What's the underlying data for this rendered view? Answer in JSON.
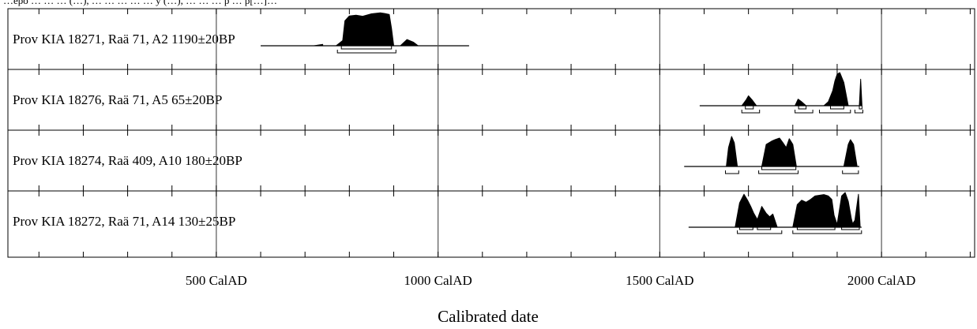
{
  "chart_data": {
    "type": "area",
    "header_text": "…epo … … … (…), … … … … … y (…), … … … p … p[…]…",
    "xlabel": "Calibrated date",
    "xlim": [
      30,
      2210
    ],
    "ticks": [
      500,
      1000,
      1500,
      2000
    ],
    "tick_labels": [
      "500 CalAD",
      "1000 CalAD",
      "1500 CalAD",
      "2000 CalAD"
    ],
    "minor_tick_step": 100,
    "grid_lines": [
      500,
      1000,
      1500,
      2000
    ],
    "rows": [
      {
        "label": "Prov KIA 18271, Raä 71, A2  1190±20BP",
        "baseline": [
          600,
          1070
        ],
        "peaks": [
          {
            "x": [
              720,
              740
            ],
            "y": [
              0,
              0.04
            ]
          },
          {
            "x": [
              770,
              785,
              790,
              800,
              815,
              830,
              850,
              870,
              880,
              890,
              895,
              900
            ],
            "y": [
              0,
              0.15,
              0.72,
              0.86,
              0.88,
              0.85,
              0.92,
              0.95,
              0.93,
              0.9,
              0.5,
              0
            ]
          },
          {
            "x": [
              915,
              930,
              945,
              955
            ],
            "y": [
              0,
              0.18,
              0.1,
              0
            ]
          }
        ],
        "ranges": [
          {
            "level": 1,
            "spans": [
              [
                782,
                895
              ]
            ]
          },
          {
            "level": 2,
            "spans": [
              [
                773,
                905
              ]
            ]
          }
        ]
      },
      {
        "label": "Prov KIA 18276, Raä 71, A5  65±20BP",
        "baseline": [
          1590,
          1950
        ],
        "peaks": [
          {
            "x": [
              1685,
              1695,
              1700,
              1708,
              1718
            ],
            "y": [
              0,
              0.18,
              0.3,
              0.18,
              0
            ]
          },
          {
            "x": [
              1805,
              1812,
              1820,
              1830
            ],
            "y": [
              0,
              0.2,
              0.12,
              0
            ]
          },
          {
            "x": [
              1870,
              1880,
              1890,
              1895,
              1900,
              1906,
              1915,
              1925
            ],
            "y": [
              0,
              0.12,
              0.45,
              0.75,
              0.95,
              1.0,
              0.7,
              0
            ]
          },
          {
            "x": [
              1950,
              1953,
              1956
            ],
            "y": [
              0,
              0.8,
              0
            ]
          }
        ],
        "ranges": [
          {
            "level": 1,
            "spans": [
              [
                1693,
                1711
              ],
              [
                1813,
                1830
              ],
              [
                1885,
                1915
              ],
              [
                1950,
                1956
              ]
            ]
          },
          {
            "level": 2,
            "spans": [
              [
                1685,
                1725
              ],
              [
                1805,
                1845
              ],
              [
                1860,
                1930
              ],
              [
                1940,
                1958
              ]
            ]
          }
        ]
      },
      {
        "label": "Prov KIA 18274, Raä 409, A10  180±20BP",
        "baseline": [
          1555,
          1950
        ],
        "peaks": [
          {
            "x": [
              1650,
              1655,
              1662,
              1668,
              1675
            ],
            "y": [
              0,
              0.6,
              0.95,
              0.75,
              0
            ]
          },
          {
            "x": [
              1730,
              1740,
              1752,
              1760,
              1770,
              1778,
              1785,
              1792,
              1800,
              1808
            ],
            "y": [
              0,
              0.7,
              0.8,
              0.85,
              0.9,
              0.75,
              0.6,
              0.88,
              0.7,
              0
            ]
          },
          {
            "x": [
              1915,
              1925,
              1930,
              1937,
              1945
            ],
            "y": [
              0,
              0.7,
              0.85,
              0.7,
              0
            ]
          }
        ],
        "ranges": [
          {
            "level": 1,
            "spans": [
              [
                1730,
                1807
              ]
            ]
          },
          {
            "level": 2,
            "spans": [
              [
                1648,
                1678
              ],
              [
                1723,
                1812
              ],
              [
                1912,
                1948
              ]
            ]
          }
        ]
      },
      {
        "label": "Prov KIA 18272, Raä 71, A14  130±25BP",
        "baseline": [
          1565,
          1955
        ],
        "peaks": [
          {
            "x": [
              1670,
              1680,
              1690,
              1698,
              1705,
              1712,
              1720,
              1730,
              1740,
              1748,
              1755,
              1765
            ],
            "y": [
              0,
              0.7,
              0.95,
              0.78,
              0.6,
              0.4,
              0.22,
              0.6,
              0.4,
              0.3,
              0.38,
              0
            ]
          },
          {
            "x": [
              1800,
              1810,
              1820,
              1830,
              1840,
              1850,
              1860,
              1870,
              1880,
              1888,
              1893,
              1900,
              1910,
              1918,
              1925,
              1932,
              1935,
              1940,
              1948,
              1952
            ],
            "y": [
              0,
              0.65,
              0.78,
              0.72,
              0.8,
              0.9,
              0.92,
              0.94,
              0.9,
              0.8,
              0.35,
              0.08,
              0.9,
              1.0,
              0.75,
              0.25,
              0.1,
              0.2,
              0.95,
              0
            ]
          }
        ],
        "ranges": [
          {
            "level": 1,
            "spans": [
              [
                1680,
                1710
              ],
              [
                1720,
                1750
              ],
              [
                1810,
                1895
              ],
              [
                1910,
                1950
              ]
            ]
          },
          {
            "level": 2,
            "spans": [
              [
                1675,
                1775
              ],
              [
                1800,
                1955
              ]
            ]
          }
        ]
      }
    ]
  }
}
